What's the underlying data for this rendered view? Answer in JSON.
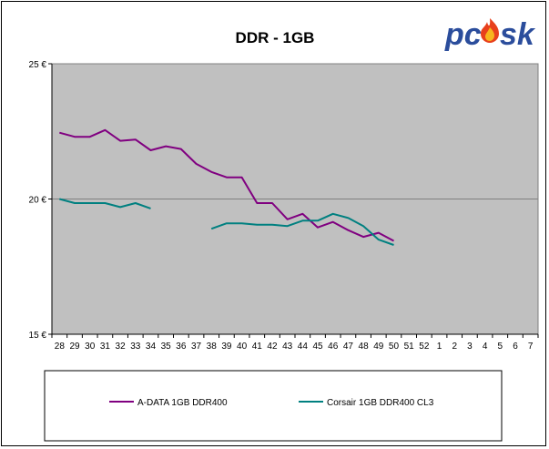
{
  "chart_data": {
    "type": "line",
    "title": "DDR - 1GB",
    "categories": [
      "28",
      "29",
      "30",
      "31",
      "32",
      "33",
      "34",
      "35",
      "36",
      "37",
      "38",
      "39",
      "40",
      "41",
      "42",
      "43",
      "44",
      "45",
      "46",
      "47",
      "48",
      "49",
      "50",
      "51",
      "52",
      "1",
      "2",
      "3",
      "4",
      "5",
      "6",
      "7"
    ],
    "y_ticks": [
      "25 €",
      "20 €",
      "15 €"
    ],
    "ylim": [
      15,
      25
    ],
    "grid": "horizontal",
    "legend_position": "bottom",
    "series": [
      {
        "name": "A-DATA 1GB DDR400",
        "color": "#800080",
        "values": [
          22.45,
          22.3,
          22.3,
          22.55,
          22.15,
          22.2,
          21.8,
          21.95,
          21.85,
          21.3,
          21.0,
          20.8,
          20.8,
          19.85,
          19.85,
          19.25,
          19.45,
          18.95,
          19.15,
          18.85,
          18.6,
          18.75,
          18.45,
          null,
          null,
          null,
          null,
          null,
          null,
          null,
          null,
          null
        ]
      },
      {
        "name": "Corsair 1GB DDR400 CL3",
        "color": "#008080",
        "values": [
          20.0,
          19.85,
          19.85,
          19.85,
          19.7,
          19.85,
          19.65,
          null,
          null,
          null,
          18.9,
          19.1,
          19.1,
          19.05,
          19.05,
          19.0,
          19.2,
          19.2,
          19.45,
          19.3,
          19.0,
          18.5,
          18.3,
          null,
          null,
          null,
          null,
          null,
          null,
          null,
          null,
          null
        ]
      }
    ]
  },
  "logo": {
    "text_before": "pc",
    "text_after": "sk",
    "colors": {
      "text": "#2b4d9c",
      "flame_outer": "#e8401c",
      "flame_inner": "#f7b51d"
    }
  },
  "colors": {
    "plot_bg": "#c0c0c0",
    "gridline": "#808080"
  }
}
